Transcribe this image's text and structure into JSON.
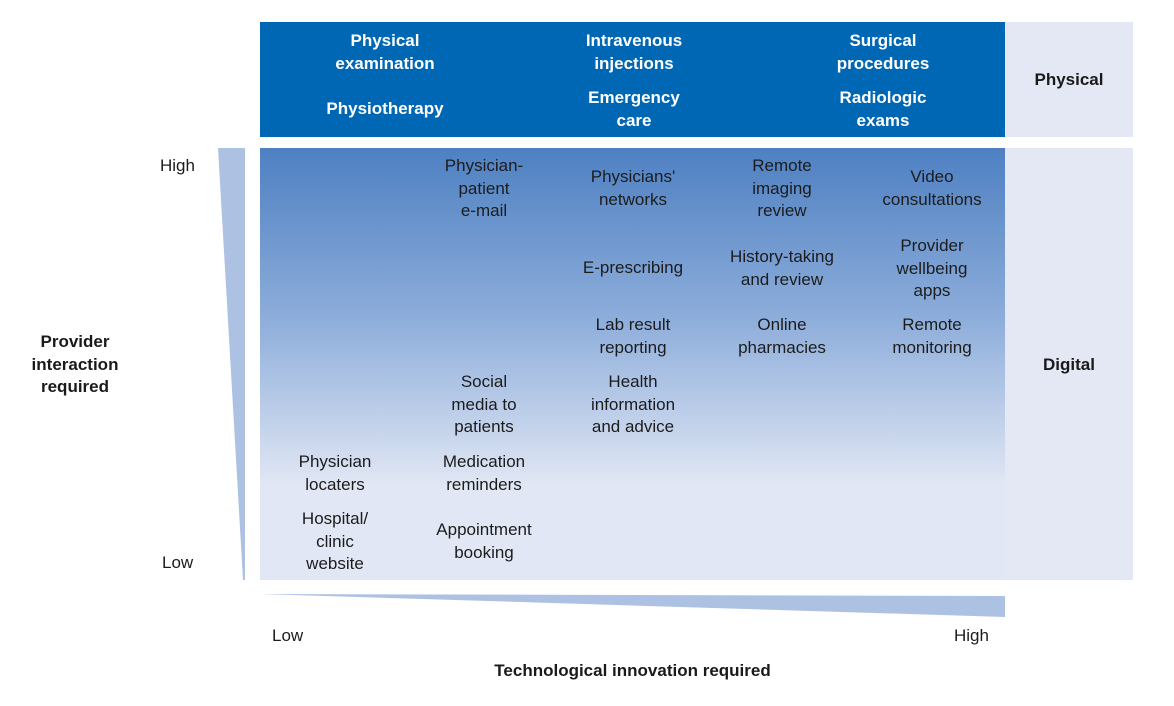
{
  "physical_band": {
    "label": "Physical",
    "items": [
      "Physical\nexamination",
      "Physiotherapy",
      "Intravenous\ninjections",
      "Emergency\ncare",
      "Surgical\nprocedures",
      "Radiologic\nexams"
    ]
  },
  "digital_band": {
    "label": "Digital",
    "items": [
      "Physician-\npatient\ne-mail",
      "Physicians'\nnetworks",
      "Remote\nimaging\nreview",
      "Video\nconsultations",
      "E-prescribing",
      "History-taking\nand review",
      "Provider\nwellbeing\napps",
      "Lab result\nreporting",
      "Online\npharmacies",
      "Remote\nmonitoring",
      "Social\nmedia to\npatients",
      "Health\ninformation\nand advice",
      "Physician\nlocaters",
      "Medication\nreminders",
      "Hospital/\nclinic\nwebsite",
      "Appointment\nbooking"
    ]
  },
  "y_axis": {
    "title": "Provider\ninteraction\nrequired",
    "high": "High",
    "low": "Low"
  },
  "x_axis": {
    "title": "Technological innovation required",
    "low": "Low",
    "high": "High"
  },
  "colors": {
    "physical": "#0067b4",
    "digital_top": "#4e80c2",
    "light": "#e1e7f4",
    "wedge": "#adc1e3"
  }
}
